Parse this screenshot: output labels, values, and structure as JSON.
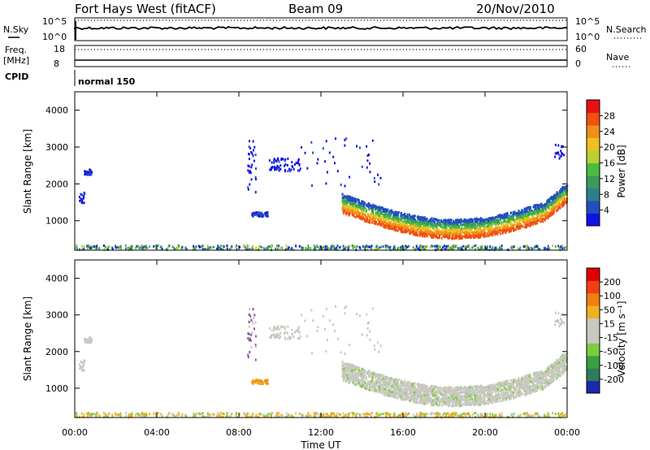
{
  "header": {
    "station": "Fort Hays West (fitACF)",
    "beam": "Beam 09",
    "date": "20/Nov/2010"
  },
  "top_panels": {
    "nsky_label": "N.Sky",
    "nsearch_label": "N.Search",
    "sky_top": "10^5",
    "sky_bottom": "10^0",
    "freq_label": "Freq.",
    "freq_unit": "[MHz]",
    "freq_top": "18",
    "freq_bottom": "8",
    "nave_label": "Nave",
    "nave_top": "60",
    "nave_bottom": "0",
    "cpid_label": "CPID",
    "cpid_value": "normal 150"
  },
  "chart_data": [
    {
      "type": "heatmap",
      "panel": "power",
      "ylabel": "Slant Range [km]",
      "xlabel": "Time UT",
      "x_ticks": [
        "00:00",
        "04:00",
        "08:00",
        "12:00",
        "16:00",
        "20:00",
        "00:00"
      ],
      "y_ticks": [
        1000,
        2000,
        3000,
        4000
      ],
      "ylim": [
        200,
        4500
      ],
      "xlim_hours": [
        0,
        24
      ],
      "colorbar_label": "Power [dB]",
      "colorbar_ticks": [
        "4",
        "8",
        "12",
        "16",
        "20",
        "24",
        "28"
      ],
      "colorbar_colors": [
        "#1010e8",
        "#2050c0",
        "#2e7d8c",
        "#3a9a5a",
        "#4cbc3c",
        "#b8d030",
        "#f0c020",
        "#f09018",
        "#f05010",
        "#e81010"
      ]
    },
    {
      "type": "heatmap",
      "panel": "velocity",
      "ylabel": "Slant Range [km]",
      "xlabel": "Time UT",
      "x_ticks": [
        "00:00",
        "04:00",
        "08:00",
        "12:00",
        "16:00",
        "20:00",
        "00:00"
      ],
      "y_ticks": [
        1000,
        2000,
        3000,
        4000
      ],
      "ylim": [
        200,
        4500
      ],
      "xlim_hours": [
        0,
        24
      ],
      "colorbar_label": "Velocity [m s⁻¹]",
      "colorbar_ticks": [
        "200",
        "100",
        "50",
        "15",
        "-15",
        "-50",
        "-100",
        "-200"
      ],
      "colorbar_colors": [
        "#1a2aa8",
        "#2e7d5a",
        "#3aa040",
        "#7ccc40",
        "#c8c8c0",
        "#c8c8c0",
        "#f0b020",
        "#f08010",
        "#f04010",
        "#e00000"
      ]
    }
  ],
  "xaxis_title": "Time UT"
}
